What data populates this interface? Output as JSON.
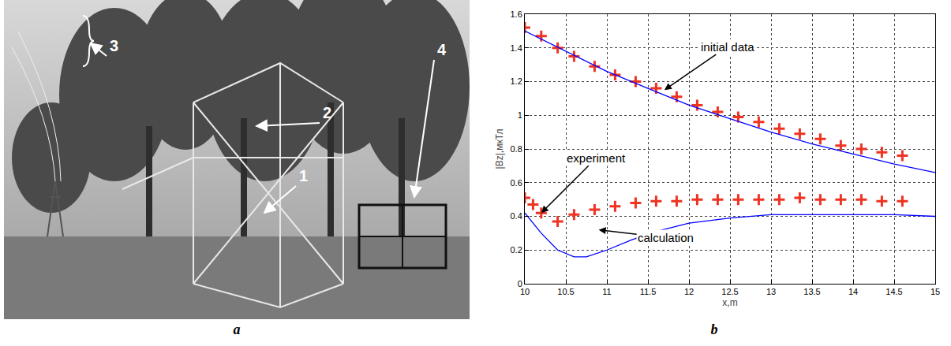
{
  "photo": {
    "caption": "a",
    "labels": [
      "1",
      "2",
      "3",
      "4"
    ]
  },
  "chart_data": {
    "type": "line",
    "caption": "b",
    "x_label": "x,m",
    "y_label": "|Bz|,мкТл",
    "xlim": [
      10,
      15
    ],
    "xticks": [
      10,
      10.5,
      11,
      11.5,
      12,
      12.5,
      13,
      13.5,
      14,
      14.5,
      15
    ],
    "ylim": [
      0,
      1.6
    ],
    "yticks": [
      0,
      0.2,
      0.4,
      0.6,
      0.8,
      1,
      1.2,
      1.4,
      1.6
    ],
    "grid": true,
    "series": [
      {
        "type": "scatter",
        "marker": "cross",
        "color": "#ee3322",
        "x": [
          10.0,
          10.2,
          10.4,
          10.6,
          10.85,
          11.1,
          11.35,
          11.6,
          11.85,
          12.1,
          12.35,
          12.6,
          12.85,
          13.1,
          13.35,
          13.6,
          13.85,
          14.1,
          14.35,
          14.6
        ],
        "values": [
          1.52,
          1.47,
          1.4,
          1.35,
          1.29,
          1.24,
          1.2,
          1.16,
          1.11,
          1.06,
          1.02,
          0.99,
          0.96,
          0.92,
          0.89,
          0.86,
          0.82,
          0.8,
          0.78,
          0.76
        ]
      },
      {
        "type": "line",
        "line_style": "solid",
        "color": "#0000ff",
        "x": [
          10,
          10.5,
          11,
          11.5,
          12,
          12.5,
          13,
          13.5,
          14,
          14.5,
          15
        ],
        "values": [
          1.5,
          1.38,
          1.26,
          1.16,
          1.06,
          0.98,
          0.9,
          0.83,
          0.77,
          0.71,
          0.66
        ]
      },
      {
        "type": "scatter",
        "marker": "cross",
        "color": "#ee3322",
        "x": [
          10.0,
          10.1,
          10.2,
          10.4,
          10.6,
          10.85,
          11.1,
          11.35,
          11.6,
          11.85,
          12.1,
          12.35,
          12.6,
          12.85,
          13.1,
          13.35,
          13.6,
          13.85,
          14.1,
          14.35,
          14.6
        ],
        "values": [
          0.51,
          0.47,
          0.42,
          0.37,
          0.41,
          0.44,
          0.46,
          0.48,
          0.49,
          0.49,
          0.5,
          0.5,
          0.5,
          0.5,
          0.5,
          0.51,
          0.5,
          0.5,
          0.5,
          0.49,
          0.49
        ]
      },
      {
        "type": "line",
        "line_style": "solid",
        "color": "#0000ff",
        "x": [
          10,
          10.2,
          10.4,
          10.6,
          10.75,
          11,
          11.3,
          11.6,
          12,
          12.5,
          13,
          13.5,
          14,
          14.5,
          15
        ],
        "values": [
          0.42,
          0.3,
          0.2,
          0.16,
          0.16,
          0.2,
          0.26,
          0.31,
          0.36,
          0.39,
          0.41,
          0.41,
          0.41,
          0.41,
          0.4
        ]
      }
    ],
    "annotations": [
      {
        "text": "initial data",
        "x": 11.7,
        "y": 1.15
      },
      {
        "text": "experiment",
        "x": 10.2,
        "y": 0.42
      },
      {
        "text": "calculation",
        "x": 10.9,
        "y": 0.32
      }
    ]
  }
}
